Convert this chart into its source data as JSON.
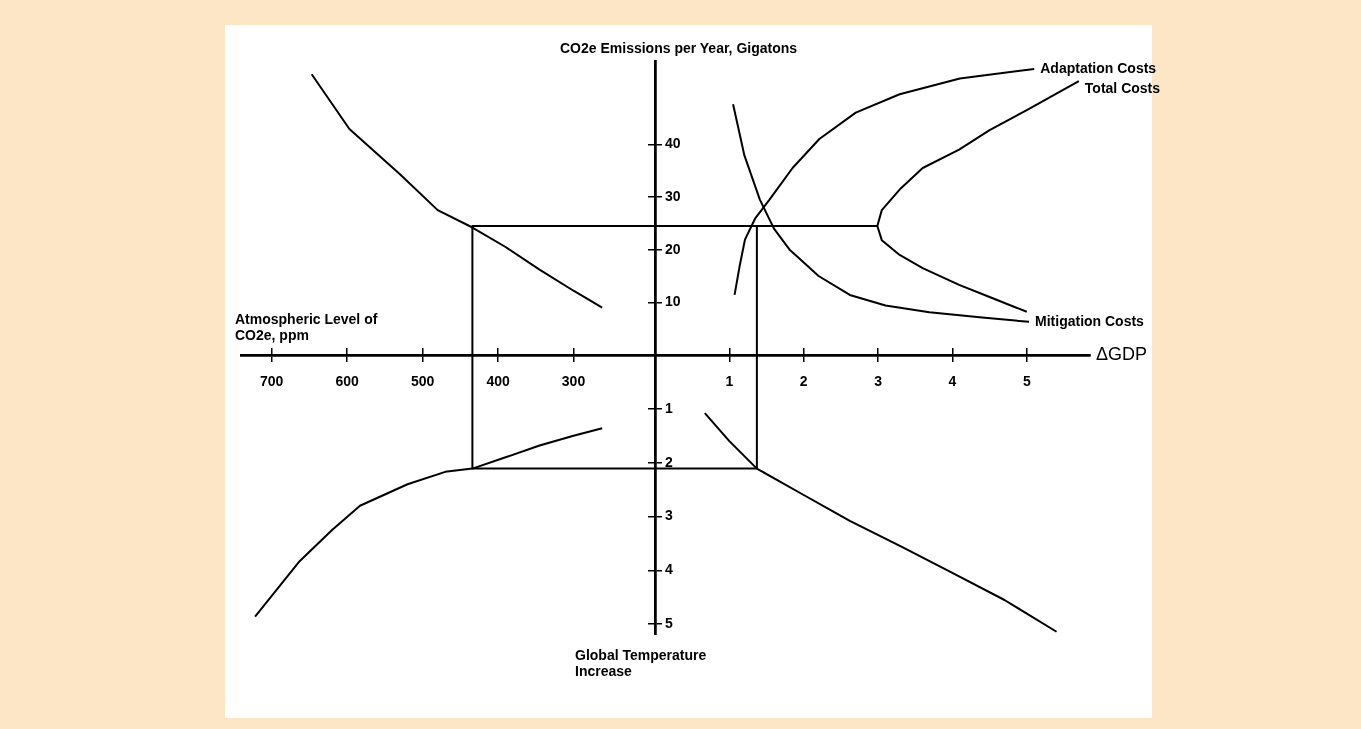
{
  "chart_data": [
    {
      "type": "line",
      "xlabel": "Atmospheric Level of CO2e, ppm",
      "xlim": [
        742,
        192
      ],
      "ylim": [
        0,
        56
      ],
      "xticks": [
        700,
        600,
        500,
        400,
        300
      ],
      "yticks": [
        10,
        20,
        30,
        40
      ],
      "tick_labels": "x",
      "grid": false,
      "legend": false,
      "series": [
        {
          "color": "#000000",
          "x": [
            647,
            597,
            530,
            480,
            434,
            390,
            345,
            300,
            262
          ],
          "values": [
            53.3,
            42.9,
            34.3,
            27.5,
            24.2,
            20.5,
            16.2,
            12.2,
            9
          ]
        },
        {
          "color": "#000000",
          "x": [
            192,
            434,
            434
          ],
          "values": [
            24.5,
            24.5,
            0
          ]
        }
      ]
    },
    {
      "type": "line",
      "xlabel": "ΔGDP",
      "ylabel": "CO2e Emissions per Year, Gigatons",
      "xlim": [
        0,
        5.85
      ],
      "ylim": [
        0,
        56
      ],
      "xticks": [
        1,
        2,
        3,
        4,
        5
      ],
      "yticks": [
        10,
        20,
        30,
        40
      ],
      "grid": false,
      "legend": false,
      "series": [
        {
          "name": "Adaptation Costs",
          "color": "#000000",
          "x": [
            1.07,
            1.14,
            1.21,
            1.35,
            1.54,
            1.85,
            2.21,
            2.7,
            3.29,
            4.1,
            5.1
          ],
          "values": [
            11.4,
            17,
            21.9,
            26,
            29.5,
            35.5,
            41,
            46,
            49.5,
            52.5,
            54.3
          ]
        },
        {
          "name": "Mitigation Costs",
          "color": "#000000",
          "x": [
            1.05,
            1.2,
            1.41,
            1.6,
            1.81,
            2.2,
            2.62,
            3.1,
            3.69,
            4.4,
            5.03
          ],
          "values": [
            47.6,
            38,
            29.5,
            24,
            20,
            15,
            11.4,
            9.4,
            8.1,
            7.1,
            6.3
          ]
        },
        {
          "name": "Total Costs",
          "color": "#000000",
          "x": [
            5.7,
            5.0,
            4.5,
            4.09,
            3.6,
            3.29,
            3.05,
            2.99,
            3.05,
            3.29,
            3.6,
            4.09,
            4.5,
            5.0
          ],
          "values": [
            52,
            46.5,
            42.7,
            39,
            35.5,
            31.4,
            27.5,
            24.5,
            21.8,
            19,
            16.5,
            13.3,
            11,
            8.2
          ]
        },
        {
          "color": "#000000",
          "x": [
            0,
            2.99
          ],
          "values": [
            24.5,
            24.5
          ]
        },
        {
          "color": "#000000",
          "x": [
            1.37,
            1.37
          ],
          "values": [
            24.5,
            0
          ]
        }
      ]
    },
    {
      "type": "line",
      "xlim": [
        742,
        192
      ],
      "ylim": [
        5.2,
        0
      ],
      "xticks": [
        700,
        600,
        500,
        400,
        300
      ],
      "yticks": [
        1,
        2,
        3,
        4,
        5
      ],
      "tick_labels": false,
      "grid": false,
      "legend": false,
      "series": [
        {
          "color": "#000000",
          "x": [
            722,
            663,
            620,
            583,
            520,
            470,
            434,
            390,
            345,
            300,
            262
          ],
          "values": [
            4.86,
            3.83,
            3.25,
            2.8,
            2.4,
            2.17,
            2.11,
            1.9,
            1.68,
            1.5,
            1.36
          ]
        },
        {
          "color": "#000000",
          "x": [
            434,
            434,
            192
          ],
          "values": [
            0,
            2.11,
            2.11
          ]
        }
      ]
    },
    {
      "type": "line",
      "ylabel": "Global Temperature Increase",
      "xlim": [
        0,
        5.85
      ],
      "ylim": [
        5.2,
        0
      ],
      "xticks": [
        1,
        2,
        3,
        4,
        5
      ],
      "yticks": [
        1,
        2,
        3,
        4,
        5
      ],
      "tick_labels": "y",
      "grid": false,
      "legend": false,
      "series": [
        {
          "color": "#000000",
          "x": [
            0.67,
            1.0,
            1.37,
            2.0,
            2.62,
            3.3,
            3.96,
            4.7,
            5.4
          ],
          "values": [
            1.08,
            1.6,
            2.11,
            2.6,
            3.08,
            3.55,
            4.02,
            4.55,
            5.14
          ]
        },
        {
          "color": "#000000",
          "x": [
            0,
            1.37,
            1.37
          ],
          "values": [
            2.11,
            2.11,
            0
          ]
        }
      ]
    }
  ]
}
